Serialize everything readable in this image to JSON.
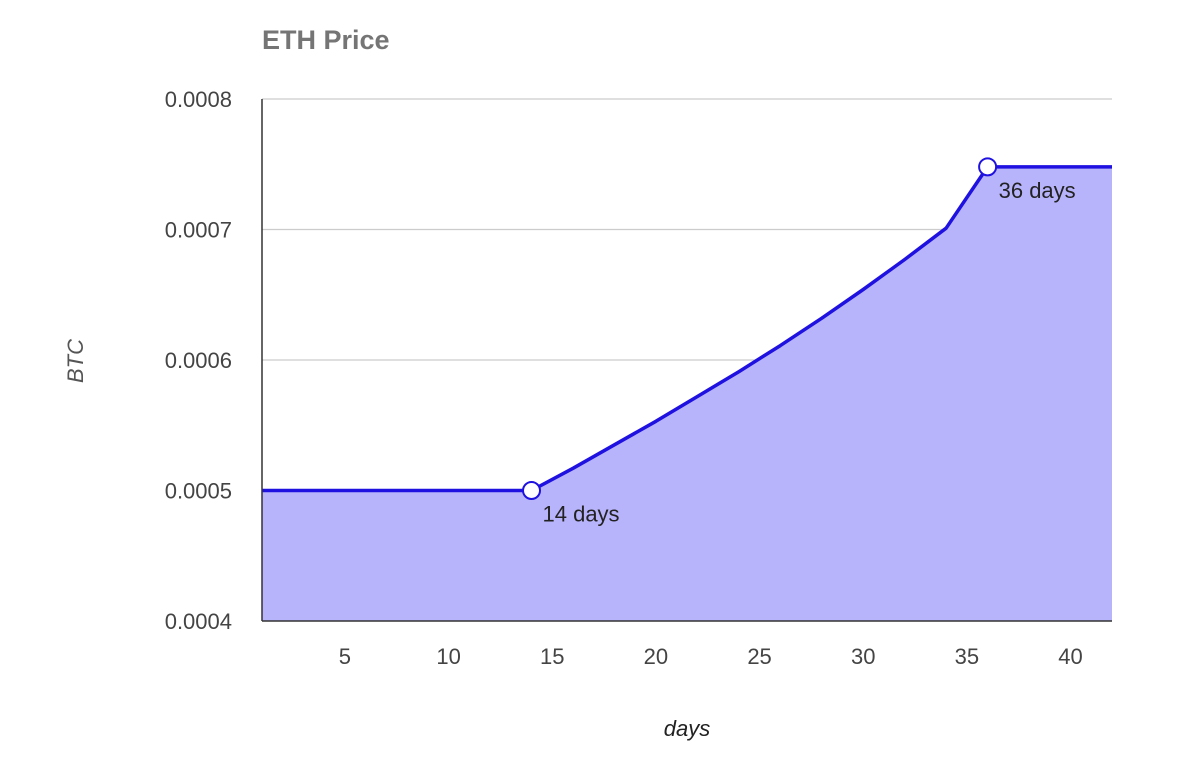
{
  "chart_data": {
    "type": "area",
    "title": "ETH Price",
    "xlabel": "days",
    "ylabel": "BTC",
    "xlim": [
      1,
      42
    ],
    "ylim": [
      0.0004,
      0.0008
    ],
    "x_ticks": [
      5,
      10,
      15,
      20,
      25,
      30,
      35,
      40
    ],
    "y_ticks": [
      "0.0004",
      "0.0005",
      "0.0006",
      "0.0007",
      "0.0008"
    ],
    "grid": true,
    "colors": {
      "line": "#1f12e0",
      "fill": "#b8b4fc",
      "grid": "#cccccc",
      "axis": "#333333"
    },
    "series": [
      {
        "x": [
          1,
          5,
          10,
          14,
          16,
          18,
          20,
          22,
          24,
          26,
          28,
          30,
          32,
          34,
          36,
          38,
          40,
          42
        ],
        "y": [
          0.0005,
          0.0005,
          0.0005,
          0.0005,
          0.000517,
          0.000535,
          0.000553,
          0.000572,
          0.000591,
          0.000611,
          0.000632,
          0.000654,
          0.000677,
          0.000701,
          0.000748,
          0.000748,
          0.000748,
          0.000748
        ]
      }
    ],
    "annotations": [
      {
        "x": 14,
        "y": 0.0005,
        "label": "14 days"
      },
      {
        "x": 36,
        "y": 0.000748,
        "label": "36 days"
      }
    ]
  }
}
